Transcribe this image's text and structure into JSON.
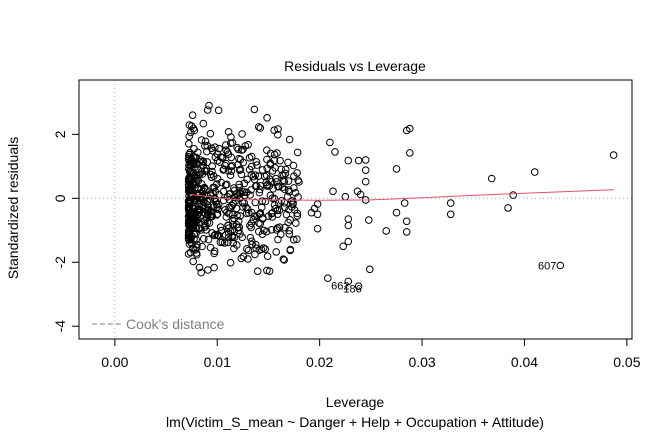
{
  "chart_data": {
    "type": "scatter",
    "title": "Residuals vs Leverage",
    "xlabel": "Leverage",
    "ylabel": "Standardized residuals",
    "subtitle": "lm(Victim_S_mean ~ Danger + Help + Occupation + Attitude)",
    "xlim": [
      -0.0035,
      0.0505
    ],
    "ylim": [
      -4.4,
      3.7
    ],
    "x_ticks": [
      0.0,
      0.01,
      0.02,
      0.03,
      0.04,
      0.05
    ],
    "x_tick_labels": [
      "0.00",
      "0.01",
      "0.02",
      "0.03",
      "0.04",
      "0.05"
    ],
    "y_ticks": [
      -4,
      -2,
      0,
      2
    ],
    "y_tick_labels": [
      "-4",
      "-2",
      "0",
      "2"
    ],
    "reference_lines": {
      "x": 0,
      "y": 0,
      "style": "dotted",
      "color": "#b0b0b0"
    },
    "legend": {
      "label": "Cook's distance",
      "placement": "bottom-left",
      "line_style": "dashed",
      "color": "#808080"
    },
    "colors": {
      "points": "#000000",
      "smooth": "#df536b",
      "legend": "#808080"
    },
    "annotations": [
      {
        "text": "607",
        "x": 0.0435,
        "y": -2.1
      },
      {
        "text": "662",
        "x": 0.0233,
        "y": -2.72
      },
      {
        "text": "186",
        "x": 0.0245,
        "y": -2.82
      }
    ],
    "smooth": {
      "x": [
        0.0073,
        0.009,
        0.0105,
        0.012,
        0.015,
        0.02,
        0.025,
        0.03,
        0.035,
        0.04,
        0.0487
      ],
      "y": [
        0.12,
        0.06,
        0.0,
        -0.04,
        -0.05,
        -0.06,
        -0.05,
        0.02,
        0.09,
        0.16,
        0.27
      ]
    },
    "outlier_points": [
      {
        "x": 0.0487,
        "y": 1.35
      },
      {
        "x": 0.0435,
        "y": -2.1
      },
      {
        "x": 0.041,
        "y": 0.82
      },
      {
        "x": 0.0389,
        "y": 0.1
      },
      {
        "x": 0.0384,
        "y": -0.3
      },
      {
        "x": 0.0368,
        "y": 0.62
      },
      {
        "x": 0.0328,
        "y": -0.15
      },
      {
        "x": 0.0328,
        "y": -0.5
      },
      {
        "x": 0.0288,
        "y": 2.18
      },
      {
        "x": 0.0285,
        "y": 2.12
      },
      {
        "x": 0.0288,
        "y": 1.42
      },
      {
        "x": 0.0283,
        "y": -0.15
      },
      {
        "x": 0.0285,
        "y": -0.72
      },
      {
        "x": 0.0285,
        "y": -1.05
      },
      {
        "x": 0.0275,
        "y": 0.92
      },
      {
        "x": 0.0275,
        "y": -0.45
      },
      {
        "x": 0.0265,
        "y": -1.02
      },
      {
        "x": 0.0245,
        "y": 1.2
      },
      {
        "x": 0.0245,
        "y": 0.88
      },
      {
        "x": 0.0245,
        "y": 0.52
      },
      {
        "x": 0.0245,
        "y": -0.05
      },
      {
        "x": 0.0248,
        "y": -0.68
      },
      {
        "x": 0.0249,
        "y": -2.22
      },
      {
        "x": 0.0238,
        "y": 1.18
      },
      {
        "x": 0.0237,
        "y": 0.22
      },
      {
        "x": 0.024,
        "y": 0.12
      },
      {
        "x": 0.0228,
        "y": 1.18
      },
      {
        "x": 0.0228,
        "y": -0.65
      },
      {
        "x": 0.0228,
        "y": -0.85
      },
      {
        "x": 0.0228,
        "y": -1.35
      },
      {
        "x": 0.0228,
        "y": -2.6
      },
      {
        "x": 0.0238,
        "y": -2.75
      },
      {
        "x": 0.0223,
        "y": -1.5
      },
      {
        "x": 0.0215,
        "y": 1.45
      },
      {
        "x": 0.021,
        "y": 1.75
      },
      {
        "x": 0.0213,
        "y": 0.22
      },
      {
        "x": 0.0208,
        "y": -2.5
      },
      {
        "x": 0.0225,
        "y": 0.05
      },
      {
        "x": 0.0198,
        "y": -0.18
      },
      {
        "x": 0.0198,
        "y": -0.5
      },
      {
        "x": 0.0198,
        "y": -0.95
      },
      {
        "x": 0.0195,
        "y": -0.32
      },
      {
        "x": 0.0192,
        "y": -0.45
      }
    ],
    "cluster": {
      "n": 600,
      "x_range": [
        0.0072,
        0.018
      ],
      "x_mode": 0.0082,
      "y_sd": 1.0
    }
  }
}
